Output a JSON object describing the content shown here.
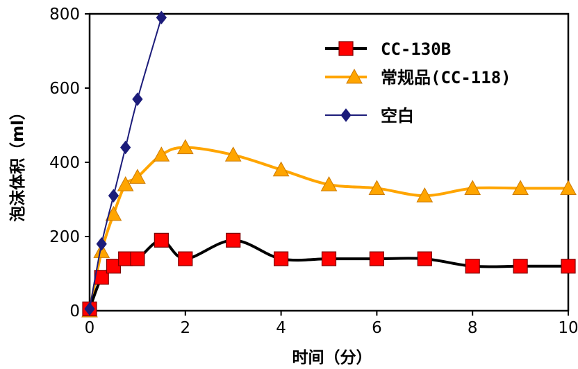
{
  "chart_data": {
    "type": "line",
    "title": "",
    "xlabel": "时间（分）",
    "ylabel": "泡沫体积（ml）",
    "xlim": [
      0,
      10
    ],
    "ylim": [
      0,
      800
    ],
    "x_ticks": [
      0,
      2,
      4,
      6,
      8,
      10
    ],
    "y_ticks": [
      0,
      200,
      400,
      600,
      800
    ],
    "x_tick_labels": [
      "0",
      "2",
      "4",
      "6",
      "8",
      "10"
    ],
    "y_tick_labels": [
      "0",
      "200",
      "400",
      "600",
      "800"
    ],
    "grid": false,
    "legend_position": "top-right",
    "series": [
      {
        "name": "CC-130B",
        "color": "#000000",
        "marker": "square",
        "marker_color": "#ff0000",
        "x": [
          0,
          0.25,
          0.5,
          0.75,
          1,
          1.5,
          2,
          3,
          4,
          5,
          6,
          7,
          8,
          9,
          10
        ],
        "y": [
          5,
          90,
          120,
          140,
          140,
          190,
          140,
          190,
          140,
          140,
          140,
          140,
          120,
          120,
          120
        ]
      },
      {
        "name": "常规品(CC-118)",
        "color": "#ffa500",
        "marker": "triangle",
        "marker_color": "#ffa500",
        "x": [
          0,
          0.25,
          0.5,
          0.75,
          1,
          1.5,
          2,
          3,
          4,
          5,
          6,
          7,
          8,
          9,
          10
        ],
        "y": [
          0,
          160,
          260,
          340,
          360,
          420,
          440,
          420,
          380,
          340,
          330,
          310,
          330,
          330,
          330
        ]
      },
      {
        "name": "空白",
        "color": "#1c1c7a",
        "marker": "diamond",
        "marker_color": "#1c1c7a",
        "x": [
          0,
          0.25,
          0.5,
          0.75,
          1,
          1.5
        ],
        "y": [
          5,
          180,
          310,
          440,
          570,
          790
        ]
      }
    ]
  }
}
